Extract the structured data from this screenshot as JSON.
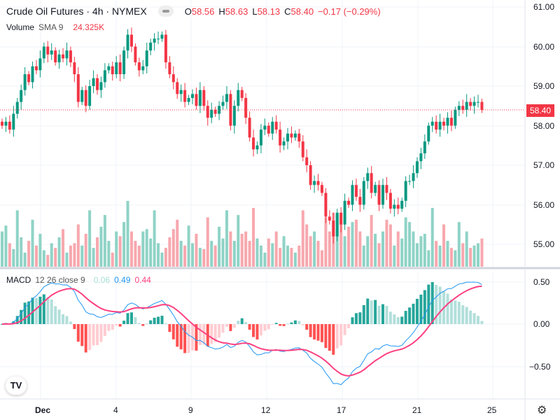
{
  "header": {
    "symbol": "Crude Oil Futures · 4h · NYMEX",
    "o_label": "O",
    "o": "58.56",
    "h_label": "H",
    "h": "58.63",
    "l_label": "L",
    "l": "58.13",
    "c_label": "C",
    "c": "58.40",
    "change": "−0.17 (−0.29%)"
  },
  "volume_legend": {
    "name": "Volume",
    "sma": "SMA 9",
    "value": "24.325K"
  },
  "macd_legend": {
    "name": "MACD",
    "params": "12 26 close 9",
    "hist": "0.06",
    "macd": "0.49",
    "signal": "0.44"
  },
  "price_axis": [
    "61.00",
    "60.00",
    "59.00",
    "58.00",
    "57.00",
    "56.00",
    "55.00"
  ],
  "last_price": "58.40",
  "macd_axis": [
    "0.50",
    "0.00",
    "−0.50"
  ],
  "time_axis": [
    "Dec",
    "4",
    "9",
    "12",
    "17",
    "21",
    "25"
  ],
  "logo": "TV",
  "colors": {
    "up": "#089981",
    "down": "#f23645",
    "up_vol": "#8fd3c6",
    "down_vol": "#f7a8ae",
    "macd": "#2196f3",
    "signal": "#ff4081"
  },
  "chart_data": {
    "type": "candlestick",
    "closes": [
      58.0,
      58.1,
      57.9,
      58.3,
      58.6,
      58.9,
      59.3,
      59.1,
      59.5,
      59.4,
      59.7,
      60.0,
      59.8,
      59.9,
      59.6,
      59.8,
      59.7,
      59.9,
      59.6,
      59.3,
      58.6,
      58.9,
      58.5,
      59.0,
      59.2,
      58.9,
      59.1,
      59.4,
      59.5,
      59.3,
      59.6,
      59.3,
      59.9,
      60.3,
      60.0,
      59.6,
      59.4,
      59.5,
      59.9,
      60.1,
      60.2,
      60.2,
      60.3,
      59.6,
      59.3,
      59.1,
      58.8,
      58.9,
      58.6,
      58.7,
      58.8,
      58.5,
      58.9,
      58.5,
      58.2,
      58.4,
      58.3,
      58.5,
      58.6,
      58.8,
      58.0,
      58.5,
      58.9,
      58.7,
      58.2,
      57.7,
      57.4,
      57.5,
      57.9,
      58.0,
      57.8,
      58.1,
      57.9,
      57.5,
      57.6,
      57.8,
      57.7,
      57.8,
      57.6,
      57.2,
      57.0,
      56.5,
      56.6,
      56.5,
      56.3,
      55.7,
      55.6,
      55.2,
      55.8,
      55.5,
      56.1,
      56.0,
      56.5,
      56.2,
      56.0,
      56.6,
      56.8,
      56.3,
      56.5,
      56.0,
      56.5,
      56.3,
      55.9,
      56.0,
      55.9,
      56.1,
      56.6,
      56.6,
      56.8,
      57.1,
      57.3,
      57.6,
      58.0,
      58.1,
      57.9,
      58.1,
      58.0,
      58.2,
      58.0,
      58.4,
      58.5,
      58.4,
      58.6,
      58.5,
      58.6,
      58.6,
      58.4
    ],
    "volumes": [
      30,
      35,
      20,
      15,
      48,
      25,
      12,
      22,
      40,
      18,
      28,
      14,
      10,
      20,
      16,
      25,
      32,
      12,
      18,
      20,
      36,
      18,
      28,
      48,
      16,
      25,
      34,
      44,
      22,
      12,
      30,
      26,
      38,
      56,
      30,
      22,
      18,
      30,
      32,
      24,
      48,
      20,
      12,
      16,
      25,
      32,
      40,
      22,
      18,
      35,
      20,
      28,
      16,
      15,
      42,
      22,
      18,
      34,
      24,
      48,
      30,
      22,
      44,
      28,
      30,
      22,
      50,
      24,
      18,
      12,
      24,
      20,
      30,
      16,
      26,
      18,
      16,
      12,
      18,
      48,
      36,
      26,
      30,
      22,
      14,
      42,
      30,
      46,
      44,
      40,
      26,
      34,
      38,
      40,
      30,
      18,
      26,
      44,
      28,
      20,
      30,
      40,
      36,
      18,
      30,
      24,
      42,
      38,
      30,
      20,
      26,
      28,
      14,
      50,
      22,
      18,
      36,
      22,
      16,
      14,
      38,
      20,
      30,
      16,
      18,
      20,
      24
    ],
    "ylim": [
      55,
      61
    ]
  }
}
